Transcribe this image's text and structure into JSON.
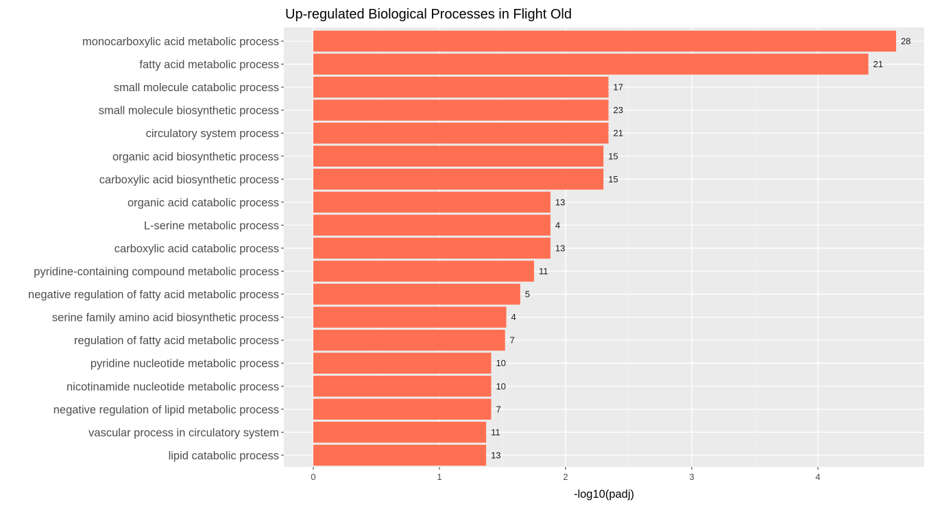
{
  "chart_data": {
    "type": "bar",
    "orientation": "horizontal",
    "title": "Up-regulated Biological Processes in Flight Old",
    "xlabel": "-log10(padj)",
    "ylabel": "",
    "xlim": [
      -0.24,
      4.78
    ],
    "xticks": [
      0,
      1,
      2,
      3,
      4
    ],
    "grid": true,
    "bar_color": "#ff6f52",
    "panel_background": "#ebebeb",
    "categories": [
      "monocarboxylic acid metabolic process",
      "fatty acid metabolic process",
      "small molecule catabolic process",
      "small molecule biosynthetic process",
      "circulatory system process",
      "organic acid biosynthetic process",
      "carboxylic acid biosynthetic process",
      "organic acid catabolic process",
      "L-serine metabolic process",
      "carboxylic acid catabolic process",
      "pyridine-containing compound metabolic process",
      "negative regulation of fatty acid metabolic process",
      "serine family amino acid biosynthetic process",
      "regulation of fatty acid metabolic process",
      "pyridine nucleotide metabolic process",
      "nicotinamide nucleotide metabolic process",
      "negative regulation of lipid metabolic process",
      "vascular process in circulatory system",
      "lipid catabolic process"
    ],
    "values": [
      4.62,
      4.4,
      2.34,
      2.34,
      2.34,
      2.3,
      2.3,
      1.88,
      1.88,
      1.88,
      1.75,
      1.64,
      1.53,
      1.52,
      1.41,
      1.41,
      1.41,
      1.37,
      1.37
    ],
    "labels": [
      "28",
      "21",
      "17",
      "23",
      "21",
      "15",
      "15",
      "13",
      "4",
      "13",
      "11",
      "5",
      "4",
      "7",
      "10",
      "10",
      "7",
      "11",
      "13"
    ]
  }
}
